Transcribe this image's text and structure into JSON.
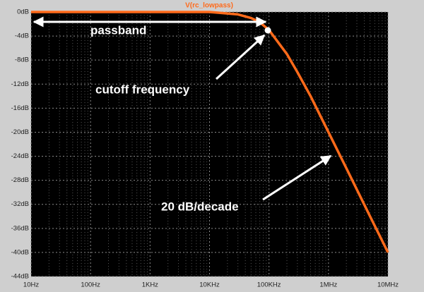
{
  "chart_data": {
    "type": "line",
    "title": "V(rc_lowpass)",
    "x": [
      10,
      100,
      1000,
      10000,
      30000,
      50000,
      70000,
      100000,
      200000,
      300000,
      500000,
      1000000,
      2000000,
      5000000,
      10000000
    ],
    "series": [
      {
        "name": "V(rc_lowpass)",
        "color": "#ff6a1a",
        "values": [
          0,
          0,
          0,
          0,
          -0.4,
          -1,
          -1.7,
          -3,
          -7,
          -10,
          -14,
          -20,
          -26,
          -34,
          -40
        ]
      }
    ],
    "xscale": "log",
    "xlim": [
      10,
      10000000
    ],
    "xticks": [
      {
        "value": 10,
        "label": "10Hz"
      },
      {
        "value": 100,
        "label": "100Hz"
      },
      {
        "value": 1000,
        "label": "1KHz"
      },
      {
        "value": 10000,
        "label": "10KHz"
      },
      {
        "value": 100000,
        "label": "100KHz"
      },
      {
        "value": 1000000,
        "label": "1MHz"
      },
      {
        "value": 10000000,
        "label": "10MHz"
      }
    ],
    "ylim": [
      -44,
      0
    ],
    "yticks": [
      {
        "value": 0,
        "label": "0dB"
      },
      {
        "value": -4,
        "label": "-4dB"
      },
      {
        "value": -8,
        "label": "-8dB"
      },
      {
        "value": -12,
        "label": "-12dB"
      },
      {
        "value": -16,
        "label": "-16dB"
      },
      {
        "value": -20,
        "label": "-20dB"
      },
      {
        "value": -24,
        "label": "-24dB"
      },
      {
        "value": -28,
        "label": "-28dB"
      },
      {
        "value": -32,
        "label": "-32dB"
      },
      {
        "value": -36,
        "label": "-36dB"
      },
      {
        "value": -40,
        "label": "-40dB"
      },
      {
        "value": -44,
        "label": "-44dB"
      }
    ],
    "grid": true,
    "annotations": [
      "passband",
      "cutoff frequency",
      "20 dB/decade"
    ]
  }
}
